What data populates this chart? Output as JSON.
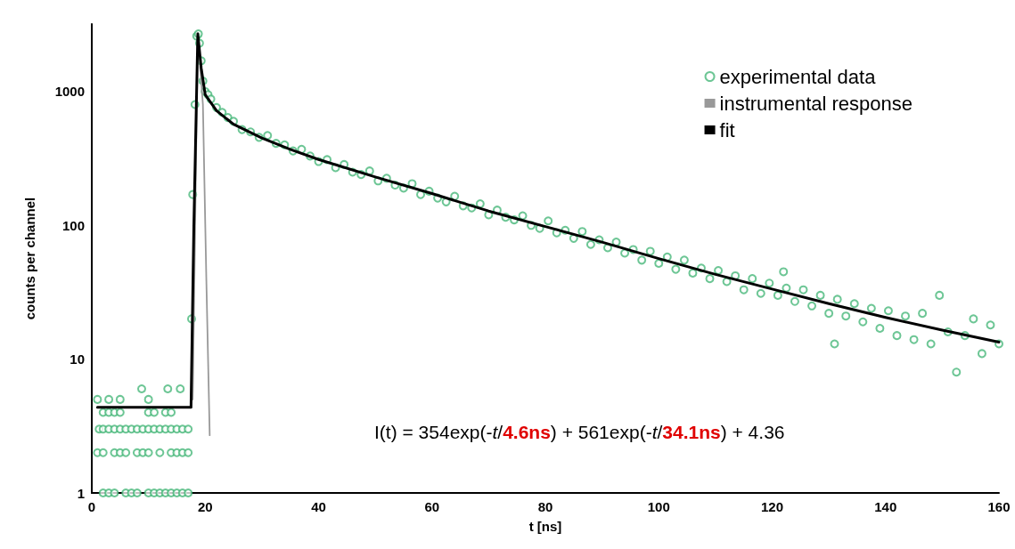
{
  "chart_data": {
    "type": "scatter",
    "xlabel": "t [ns]",
    "ylabel": "counts per channel",
    "log": "y",
    "xlim": [
      0,
      160
    ],
    "xticks": [
      0,
      20,
      40,
      60,
      80,
      100,
      120,
      140,
      160
    ],
    "ylim": [
      1,
      3200
    ],
    "yticks": [
      1,
      10,
      100,
      1000
    ],
    "grid": false,
    "legend": "top right",
    "annotations": [
      "I(t) = 354exp(-t/4.6ns) + 561exp(-t/34.1ns) + 4.36"
    ],
    "series": [
      {
        "name": "experimental data",
        "marker": "circle",
        "color": "#3cb371",
        "x": [
          2,
          3,
          4,
          6,
          7,
          8,
          10,
          11,
          12,
          13,
          14,
          15,
          16,
          17,
          1,
          2,
          4,
          5,
          6,
          8,
          9,
          10,
          12,
          14,
          15,
          16,
          17,
          1.3,
          2,
          3,
          4,
          5,
          6,
          7,
          8,
          9,
          10,
          11,
          12,
          13,
          14,
          15,
          16,
          17,
          2,
          3,
          4,
          5,
          10,
          11,
          13,
          14,
          1,
          3,
          5,
          10,
          8.8,
          13.4,
          15.6,
          17.6,
          17.8,
          18.2,
          18.5,
          18.8,
          19,
          19.3,
          19.6,
          20,
          20.5,
          21,
          22,
          23,
          24,
          25,
          26.5,
          28,
          29.5,
          31,
          32.5,
          34,
          35.5,
          37,
          38.5,
          40,
          41.5,
          43,
          44.5,
          46,
          47.5,
          49,
          50.5,
          52,
          53.5,
          55,
          56.5,
          58,
          59.5,
          61,
          62.5,
          64,
          65.5,
          67,
          68.5,
          70,
          71.5,
          73,
          74.5,
          76,
          77.5,
          79,
          80.5,
          82,
          83.5,
          85,
          86.5,
          88,
          89.5,
          91,
          92.5,
          94,
          95.5,
          97,
          98.5,
          100,
          101.5,
          103,
          104.5,
          106,
          107.5,
          109,
          110.5,
          112,
          113.5,
          115,
          116.5,
          118,
          119.5,
          121,
          122,
          122.5,
          124,
          125.5,
          127,
          128.5,
          130,
          131,
          131.5,
          133,
          134.5,
          136,
          137.5,
          139,
          140.5,
          142,
          143.5,
          145,
          146.5,
          148,
          149.5,
          151,
          152.5,
          154,
          155.5,
          157,
          158.5,
          160
        ],
        "values": [
          1,
          1,
          1,
          1,
          1,
          1,
          1,
          1,
          1,
          1,
          1,
          1,
          1,
          1,
          2,
          2,
          2,
          2,
          2,
          2,
          2,
          2,
          2,
          2,
          2,
          2,
          2,
          3,
          3,
          3,
          3,
          3,
          3,
          3,
          3,
          3,
          3,
          3,
          3,
          3,
          3,
          3,
          3,
          3,
          4,
          4,
          4,
          4,
          4,
          4,
          4,
          4,
          5,
          5,
          5,
          5,
          6,
          6,
          6,
          20,
          170,
          800,
          2600,
          2700,
          2300,
          1700,
          1200,
          1000,
          950,
          880,
          760,
          700,
          640,
          600,
          520,
          500,
          455,
          470,
          410,
          400,
          360,
          370,
          330,
          300,
          310,
          270,
          285,
          250,
          240,
          255,
          215,
          225,
          200,
          190,
          205,
          170,
          180,
          160,
          150,
          165,
          140,
          135,
          145,
          120,
          130,
          115,
          110,
          118,
          100,
          95,
          108,
          88,
          92,
          80,
          90,
          72,
          78,
          68,
          75,
          62,
          66,
          55,
          64,
          52,
          58,
          47,
          55,
          44,
          48,
          40,
          46,
          38,
          42,
          33,
          40,
          31,
          37,
          30,
          45,
          34,
          27,
          33,
          25,
          30,
          22,
          13,
          28,
          21,
          26,
          19,
          24,
          17,
          23,
          15,
          21,
          14,
          22,
          13,
          30,
          16,
          8,
          15,
          20,
          11,
          18,
          13
        ]
      },
      {
        "name": "instrumental response",
        "type": "line",
        "marker": "none",
        "color": "#999999",
        "x": [
          17.8,
          18.7,
          19.6,
          20.2,
          20.8
        ],
        "values": [
          5,
          2700,
          800,
          40,
          2.7
        ]
      },
      {
        "name": "fit",
        "type": "line",
        "marker": "none",
        "color": "#000000",
        "x": [
          1,
          17.5,
          18,
          18.7,
          19.3,
          20,
          22,
          25,
          30,
          35,
          40,
          50,
          60,
          70,
          80,
          90,
          100,
          110,
          120,
          130,
          140,
          150,
          160
        ],
        "values": [
          4.36,
          4.36,
          100,
          2700,
          1500,
          950,
          720,
          570,
          450,
          370,
          311,
          230,
          173,
          128,
          98,
          75,
          56.5,
          43,
          33.4,
          26,
          20.5,
          16.5,
          13.4
        ]
      }
    ]
  }
}
